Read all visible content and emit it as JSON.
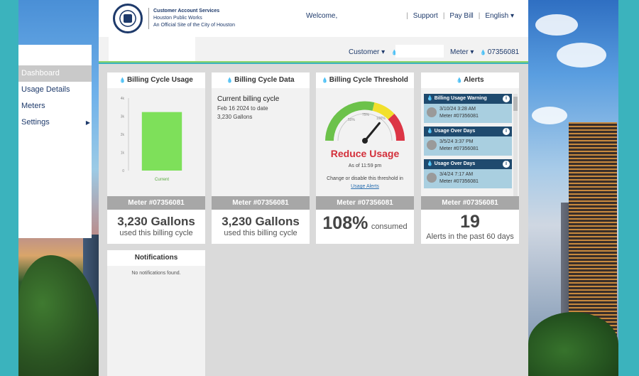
{
  "header": {
    "agency_line1": "Customer Account Services",
    "agency_line2": "Houston Public Works",
    "agency_line3": "An Official Site of the City of Houston",
    "welcome": "Welcome,",
    "links": [
      "Support",
      "Pay Bill",
      "English ▾"
    ]
  },
  "subheader": {
    "customer_label": "Customer ▾",
    "meter_label": "Meter ▾",
    "meter_number": "07356081"
  },
  "sidebar": {
    "items": [
      {
        "label": "Dashboard",
        "active": true
      },
      {
        "label": "Usage Details"
      },
      {
        "label": "Meters"
      },
      {
        "label": "Settings",
        "has_submenu": true
      }
    ],
    "submenu_caret": "▶"
  },
  "cards": {
    "usage": {
      "title": "Billing Cycle Usage",
      "meter": "Meter #07356081",
      "big": "3,230 Gallons",
      "sub": "used this billing cycle"
    },
    "data": {
      "title": "Billing Cycle Data",
      "line1": "Current billing cycle",
      "line2": "Feb 16 2024 to date",
      "line3": "3,230 Gallons",
      "meter": "Meter #07356081",
      "big": "3,230 Gallons",
      "sub": "used this billing cycle"
    },
    "threshold": {
      "title": "Billing Cycle Threshold",
      "status": "Reduce Usage",
      "as_of": "As of 11:59 pm",
      "note": "Change or disable this threshold in",
      "link": "Usage Alerts",
      "meter": "Meter #07356081",
      "big": "108%",
      "sub": "consumed",
      "percent": 108,
      "gauge_labels": [
        "50%",
        "75%",
        "100%"
      ]
    },
    "alerts": {
      "title": "Alerts",
      "items": [
        {
          "type": "Billing Usage Warning",
          "date": "3/10/24 3:28 AM",
          "meter": "Meter #07356081"
        },
        {
          "type": "Usage Over Days",
          "date": "3/5/24 3:37 PM",
          "meter": "Meter #07356081"
        },
        {
          "type": "Usage Over Days",
          "date": "3/4/24 7:17 AM",
          "meter": "Meter #07356081"
        }
      ],
      "meter": "Meter #07356081",
      "big": "19",
      "sub": "Alerts in the past 60 days"
    },
    "notifications": {
      "title": "Notifications",
      "empty": "No notifications found."
    }
  },
  "colors": {
    "accent_green": "#8bd36a",
    "bar_green": "#7ee05a",
    "alert_header": "#1f4a6e",
    "reduce_red": "#d32f3a"
  },
  "chart_data": {
    "type": "bar",
    "categories": [
      "Current"
    ],
    "values": [
      3.23
    ],
    "ylim": [
      0,
      4
    ],
    "yticks": [
      "0",
      "1k",
      "2k",
      "3k",
      "4k"
    ]
  }
}
